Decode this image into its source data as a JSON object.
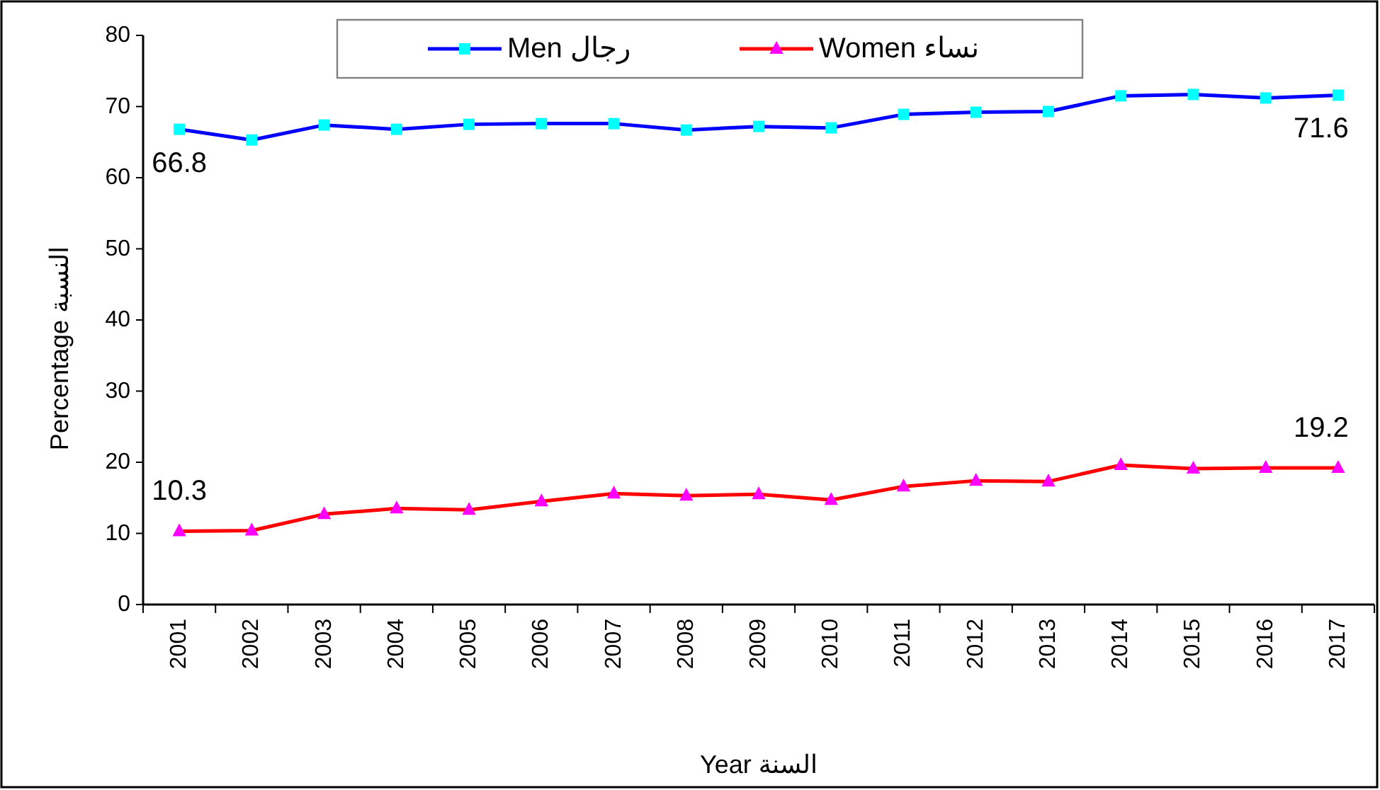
{
  "chart_data": {
    "type": "line",
    "categories": [
      "2001",
      "2002",
      "2003",
      "2004",
      "2005",
      "2006",
      "2007",
      "2008",
      "2009",
      "2010",
      "2011",
      "2012",
      "2013",
      "2014",
      "2015",
      "2016",
      "2017"
    ],
    "series": [
      {
        "name": "Men رجال",
        "color": "#0000ff",
        "marker": "square",
        "values": [
          66.8,
          65.3,
          67.4,
          66.8,
          67.5,
          67.6,
          67.6,
          66.7,
          67.2,
          67.0,
          68.9,
          69.2,
          69.3,
          71.5,
          71.7,
          71.2,
          71.6
        ],
        "value_labels": [
          "66.8",
          null,
          null,
          null,
          null,
          null,
          null,
          null,
          null,
          null,
          null,
          null,
          null,
          null,
          null,
          null,
          "71.6"
        ]
      },
      {
        "name": "Women نساء",
        "color": "#ff0000",
        "marker": "triangle",
        "values": [
          10.3,
          10.4,
          12.7,
          13.5,
          13.3,
          14.5,
          15.6,
          15.3,
          15.5,
          14.7,
          16.6,
          17.4,
          17.3,
          19.6,
          19.1,
          19.2,
          19.2
        ],
        "value_labels": [
          "10.3",
          null,
          null,
          null,
          null,
          null,
          null,
          null,
          null,
          null,
          null,
          null,
          null,
          null,
          null,
          null,
          "19.2"
        ]
      }
    ],
    "ylim": [
      0,
      80
    ],
    "yticks": [
      0,
      10,
      20,
      30,
      40,
      50,
      60,
      70,
      80
    ],
    "ylabel": "Percentage النسبة",
    "xlabel": "Year السنة",
    "legend": "top",
    "grid": false,
    "line_style": "solid"
  }
}
